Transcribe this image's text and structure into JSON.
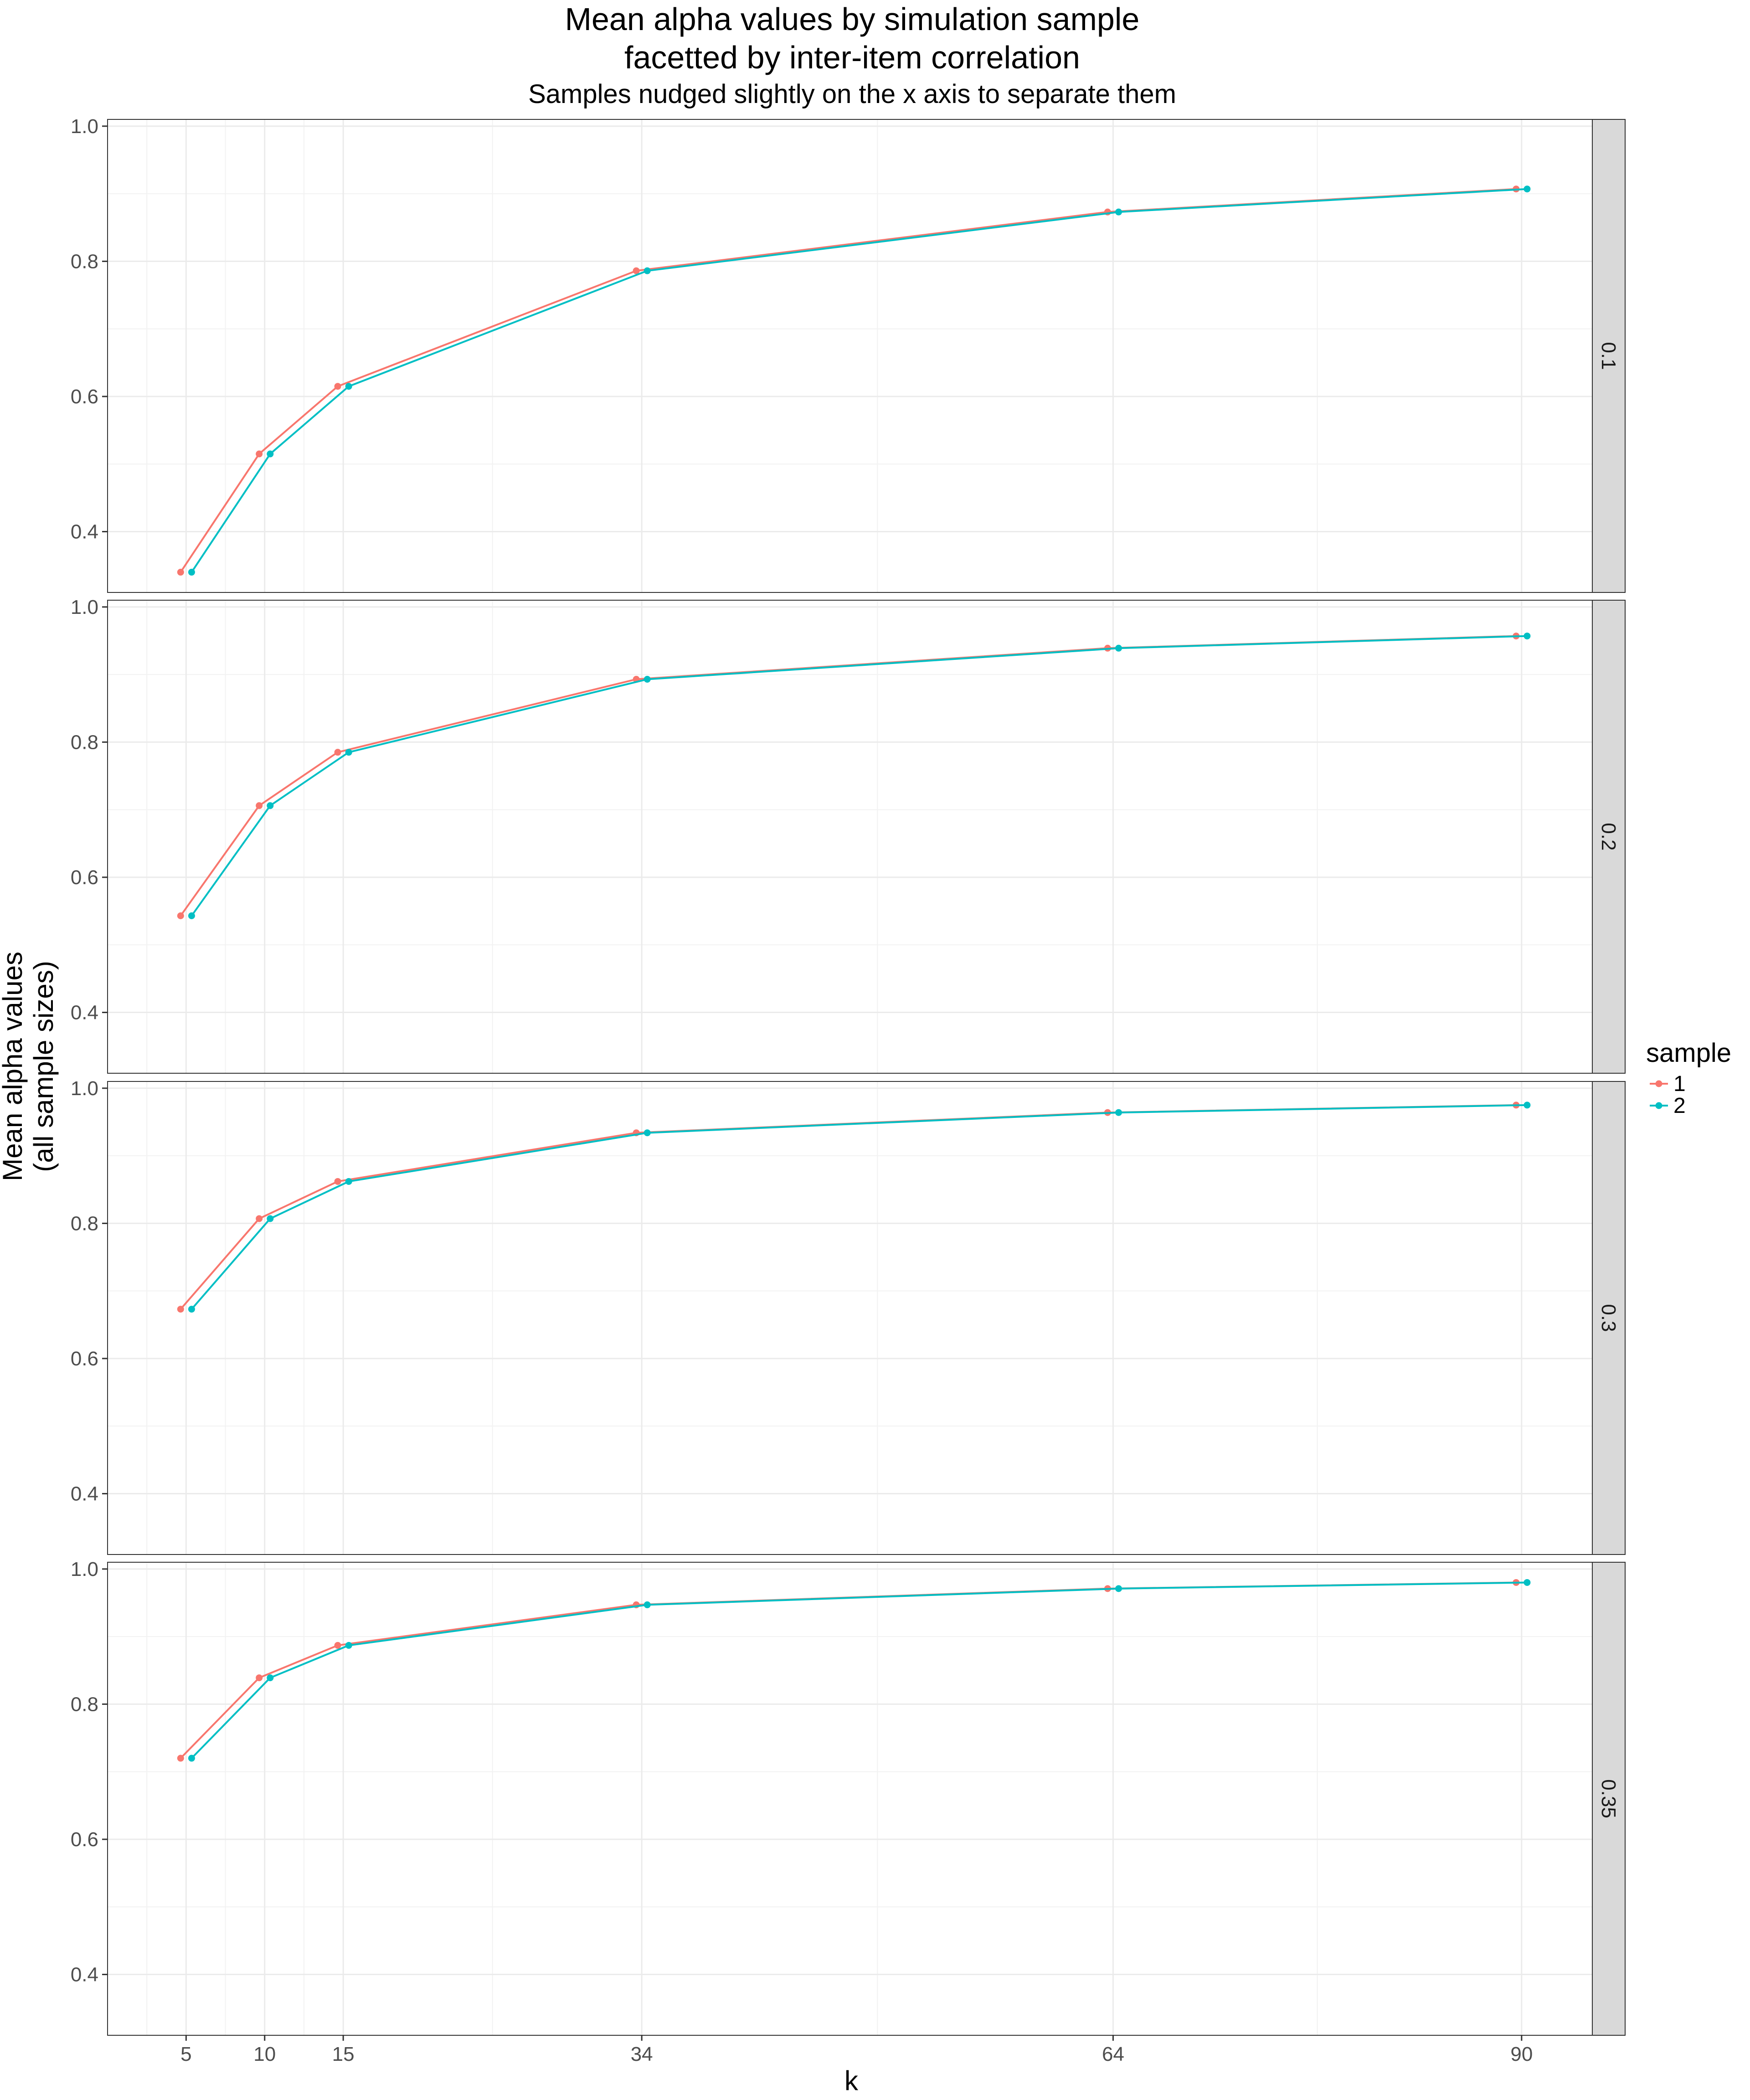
{
  "chart_data": {
    "type": "line",
    "title": "Mean alpha values by simulation sample",
    "title_line2": "facetted by inter-item correlation",
    "subtitle": "Samples nudged slightly on the x axis to separate them",
    "xlabel": "k",
    "ylabel": "Mean alpha values",
    "ylabel_line2": "(all sample sizes)",
    "x_ticks": [
      5,
      10,
      15,
      34,
      64,
      90
    ],
    "x_tick_labels": [
      "5",
      "10",
      "15",
      "34",
      "64",
      "90"
    ],
    "xlim": [
      0,
      94.5
    ],
    "y_ticks": [
      0.4,
      0.6,
      0.8,
      1.0
    ],
    "y_tick_labels": [
      "0.4",
      "0.6",
      "0.8",
      "1.0"
    ],
    "ylim": [
      0.31,
      1.01
    ],
    "nudge": 0.35,
    "grid": true,
    "legend": {
      "title": "sample",
      "position": "right",
      "entries": [
        {
          "label": "1",
          "color": "#F8766D"
        },
        {
          "label": "2",
          "color": "#00BFC4"
        }
      ]
    },
    "facets": [
      {
        "label": "0.1",
        "k": [
          5,
          10,
          15,
          34,
          64,
          90
        ],
        "series": [
          {
            "name": "1",
            "values": [
              0.34,
              0.515,
              0.615,
              0.786,
              0.873,
              0.907
            ]
          },
          {
            "name": "2",
            "values": [
              0.34,
              0.515,
              0.615,
              0.786,
              0.873,
              0.907
            ]
          }
        ]
      },
      {
        "label": "0.2",
        "k": [
          5,
          10,
          15,
          34,
          64,
          90
        ],
        "series": [
          {
            "name": "1",
            "values": [
              0.543,
              0.706,
              0.785,
              0.893,
              0.939,
              0.957
            ]
          },
          {
            "name": "2",
            "values": [
              0.543,
              0.706,
              0.785,
              0.893,
              0.939,
              0.957
            ]
          }
        ]
      },
      {
        "label": "0.3",
        "k": [
          5,
          10,
          15,
          34,
          64,
          90
        ],
        "series": [
          {
            "name": "1",
            "values": [
              0.673,
              0.807,
              0.862,
              0.934,
              0.964,
              0.975
            ]
          },
          {
            "name": "2",
            "values": [
              0.673,
              0.807,
              0.862,
              0.934,
              0.964,
              0.975
            ]
          }
        ]
      },
      {
        "label": "0.35",
        "k": [
          5,
          10,
          15,
          34,
          64,
          90
        ],
        "series": [
          {
            "name": "1",
            "values": [
              0.72,
              0.839,
              0.887,
              0.947,
              0.971,
              0.98
            ]
          },
          {
            "name": "2",
            "values": [
              0.72,
              0.839,
              0.887,
              0.947,
              0.971,
              0.98
            ]
          }
        ]
      }
    ]
  }
}
